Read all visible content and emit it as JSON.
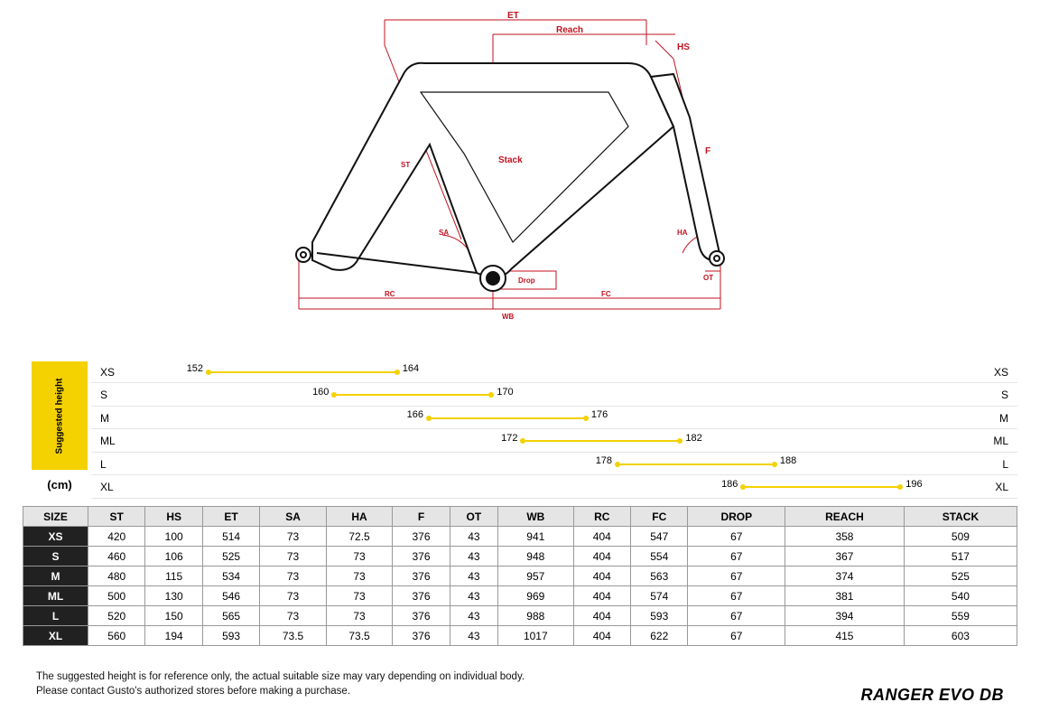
{
  "diagram": {
    "labels": {
      "ET": "ET",
      "Reach": "Reach",
      "HS": "HS",
      "F": "F",
      "Stack": "Stack",
      "ST": "ST",
      "SA": "SA",
      "HA": "HA",
      "Drop": "Drop",
      "OT": "OT",
      "RC": "RC",
      "WB": "WB",
      "FC": "FC"
    },
    "stroke_red": "#c1121f",
    "stroke_frame": "#111111",
    "fill_frame": "#ffffff"
  },
  "height_chart": {
    "badge_title": "Suggested height",
    "unit_label": "(cm)",
    "badge_bg": "#f4d100",
    "bar_color": "#f4d100",
    "grid_color": "#e5e5e5",
    "font_size": 12,
    "domain": [
      148,
      200
    ],
    "rows": [
      {
        "size": "XS",
        "lo": 152,
        "hi": 164
      },
      {
        "size": "S",
        "lo": 160,
        "hi": 170
      },
      {
        "size": "M",
        "lo": 166,
        "hi": 176
      },
      {
        "size": "ML",
        "lo": 172,
        "hi": 182
      },
      {
        "size": "L",
        "lo": 178,
        "hi": 188
      },
      {
        "size": "XL",
        "lo": 186,
        "hi": 196
      }
    ]
  },
  "geometry_table": {
    "header_bg": "#e5e5e5",
    "size_col_bg": "#212121",
    "size_col_fg": "#ffffff",
    "border_color": "#999999",
    "columns": [
      "SIZE",
      "ST",
      "HS",
      "ET",
      "SA",
      "HA",
      "F",
      "OT",
      "WB",
      "RC",
      "FC",
      "DROP",
      "REACH",
      "STACK"
    ],
    "rows": [
      [
        "XS",
        420,
        100,
        514,
        73,
        72.5,
        376,
        43,
        941,
        404,
        547,
        67,
        358,
        509
      ],
      [
        "S",
        460,
        106,
        525,
        73,
        73,
        376,
        43,
        948,
        404,
        554,
        67,
        367,
        517
      ],
      [
        "M",
        480,
        115,
        534,
        73,
        73,
        376,
        43,
        957,
        404,
        563,
        67,
        374,
        525
      ],
      [
        "ML",
        500,
        130,
        546,
        73,
        73,
        376,
        43,
        969,
        404,
        574,
        67,
        381,
        540
      ],
      [
        "L",
        520,
        150,
        565,
        73,
        73,
        376,
        43,
        988,
        404,
        593,
        67,
        394,
        559
      ],
      [
        "XL",
        560,
        194,
        593,
        73.5,
        73.5,
        376,
        43,
        1017,
        404,
        622,
        67,
        415,
        603
      ]
    ]
  },
  "footer": {
    "line1": "The suggested height is for reference only, the actual suitable size may vary depending on individual body.",
    "line2": "Please contact Gusto's authorized stores before making a purchase."
  },
  "product_name": "RANGER EVO DB"
}
